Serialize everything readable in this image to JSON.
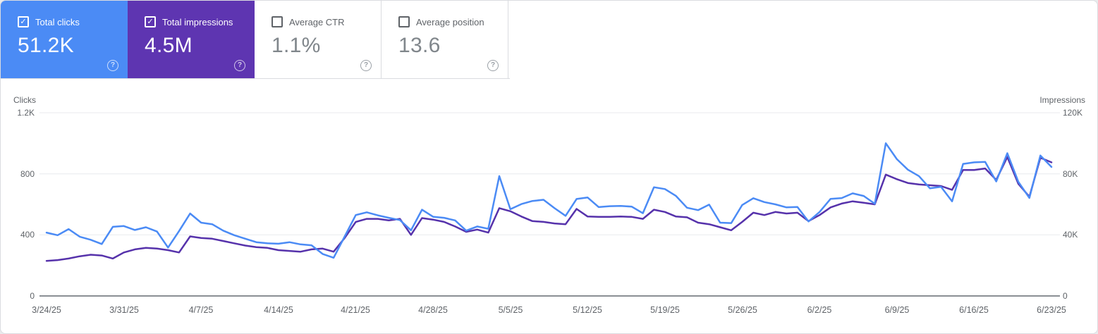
{
  "cards": [
    {
      "label": "Total clicks",
      "value": "51.2K",
      "checked": true,
      "selected": true,
      "color": "#4b8bf5"
    },
    {
      "label": "Total impressions",
      "value": "4.5M",
      "checked": true,
      "selected": true,
      "color": "#5e35b1"
    },
    {
      "label": "Average CTR",
      "value": "1.1%",
      "checked": false,
      "selected": false,
      "color": "#ffffff"
    },
    {
      "label": "Average position",
      "value": "13.6",
      "checked": false,
      "selected": false,
      "color": "#ffffff"
    }
  ],
  "help_symbol": "?",
  "check_symbol": "✓",
  "colors": {
    "grid": "#e8eaed",
    "axis": "#8a8f94",
    "border": "#dadce0",
    "muted_text": "#5f6368",
    "value_gray": "#80868b"
  },
  "chart_data": {
    "type": "line",
    "grid": "horizontal",
    "start_date": "3/24/25",
    "end_date": "6/23/25",
    "left_axis": {
      "title": "Clicks",
      "ylim": [
        0,
        1200
      ],
      "ticks": [
        {
          "label": "1.2K",
          "value": 1200
        },
        {
          "label": "800",
          "value": 800
        },
        {
          "label": "400",
          "value": 400
        },
        {
          "label": "0",
          "value": 0
        }
      ]
    },
    "right_axis": {
      "title": "Impressions",
      "ylim": [
        0,
        120000
      ],
      "ticks": [
        {
          "label": "120K",
          "value": 120000
        },
        {
          "label": "80K",
          "value": 80000
        },
        {
          "label": "40K",
          "value": 40000
        },
        {
          "label": "0",
          "value": 0
        }
      ]
    },
    "x_tick_labels": [
      "3/24/25",
      "3/31/25",
      "4/7/25",
      "4/14/25",
      "4/21/25",
      "4/28/25",
      "5/5/25",
      "5/12/25",
      "5/19/25",
      "5/26/25",
      "6/2/25",
      "6/9/25",
      "6/16/25",
      "6/23/25"
    ],
    "x_tick_day_indices": [
      0,
      7,
      14,
      21,
      28,
      35,
      42,
      49,
      56,
      63,
      70,
      77,
      84,
      91
    ],
    "series": [
      {
        "name": "Total clicks",
        "axis": "left",
        "color": "#4b8bf5",
        "values": [
          415,
          398,
          438,
          388,
          368,
          340,
          453,
          458,
          432,
          450,
          422,
          317,
          425,
          540,
          480,
          470,
          428,
          398,
          375,
          352,
          345,
          342,
          352,
          338,
          332,
          275,
          250,
          390,
          530,
          548,
          528,
          512,
          497,
          430,
          565,
          519,
          512,
          495,
          428,
          455,
          440,
          785,
          568,
          602,
          622,
          630,
          575,
          525,
          635,
          645,
          582,
          588,
          590,
          585,
          542,
          712,
          700,
          655,
          578,
          562,
          598,
          480,
          477,
          596,
          640,
          615,
          600,
          580,
          583,
          488,
          550,
          636,
          641,
          672,
          655,
          604,
          1000,
          896,
          827,
          785,
          705,
          715,
          620,
          865,
          875,
          878,
          750,
          935,
          748,
          642,
          920,
          845
        ]
      },
      {
        "name": "Total impressions",
        "axis": "right",
        "color": "#5632ab",
        "values": [
          23000,
          23500,
          24500,
          26000,
          27000,
          26500,
          24500,
          28500,
          30500,
          31500,
          31000,
          30000,
          28500,
          39000,
          38000,
          37500,
          36000,
          34500,
          33000,
          32000,
          31500,
          30000,
          29500,
          29000,
          30500,
          31000,
          29000,
          38000,
          48500,
          50500,
          50500,
          49500,
          50500,
          40000,
          51000,
          50000,
          48500,
          45500,
          42000,
          43500,
          41500,
          57500,
          55500,
          52000,
          49000,
          48500,
          47500,
          47000,
          57000,
          52000,
          51800,
          51800,
          52000,
          51800,
          50500,
          56500,
          55000,
          52000,
          51500,
          48000,
          47000,
          45000,
          43000,
          48500,
          54500,
          53000,
          55000,
          54000,
          54500,
          49000,
          53000,
          58000,
          60500,
          62000,
          61000,
          60000,
          79500,
          76500,
          74000,
          73000,
          72500,
          72000,
          69500,
          82500,
          82500,
          83500,
          76000,
          91000,
          73500,
          65000,
          90500,
          87500
        ]
      }
    ]
  }
}
